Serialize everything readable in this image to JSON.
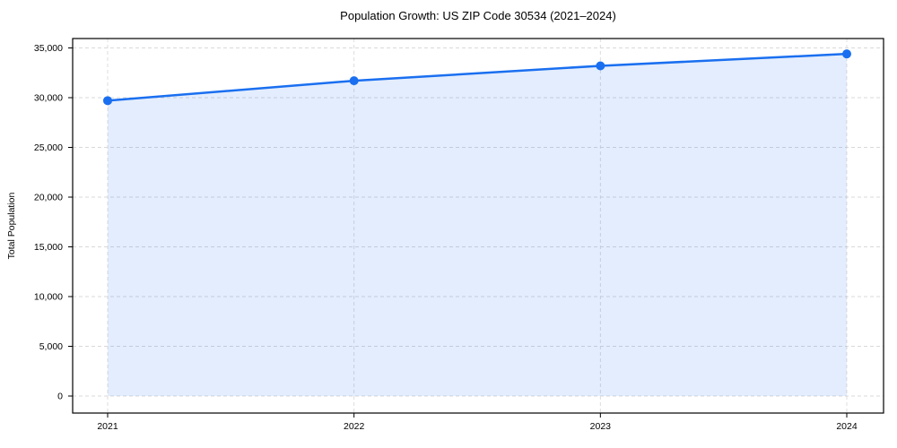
{
  "chart": {
    "title": "Population Growth: US ZIP Code 30534 (2021–2024)",
    "ylabel": "Total Population"
  },
  "chart_data": {
    "type": "area",
    "title": "Population Growth: US ZIP Code 30534 (2021–2024)",
    "xlabel": "",
    "ylabel": "Total Population",
    "categories": [
      "2021",
      "2022",
      "2023",
      "2024"
    ],
    "series": [
      {
        "name": "Total Population",
        "values": [
          29700,
          31700,
          33200,
          34400
        ]
      }
    ],
    "ylim": [
      0,
      35000
    ],
    "yticks": [
      0,
      5000,
      10000,
      15000,
      20000,
      25000,
      30000,
      35000
    ],
    "grid": true,
    "grid_style": "dashed",
    "legend": "none",
    "colors": {
      "line": "#1a6ff0",
      "marker": "#1a6ff0",
      "fill": "#1a6ff0",
      "fill_opacity": 0.12,
      "grid": "#d9d9d9",
      "spine": "#000000",
      "text": "#000000"
    }
  }
}
